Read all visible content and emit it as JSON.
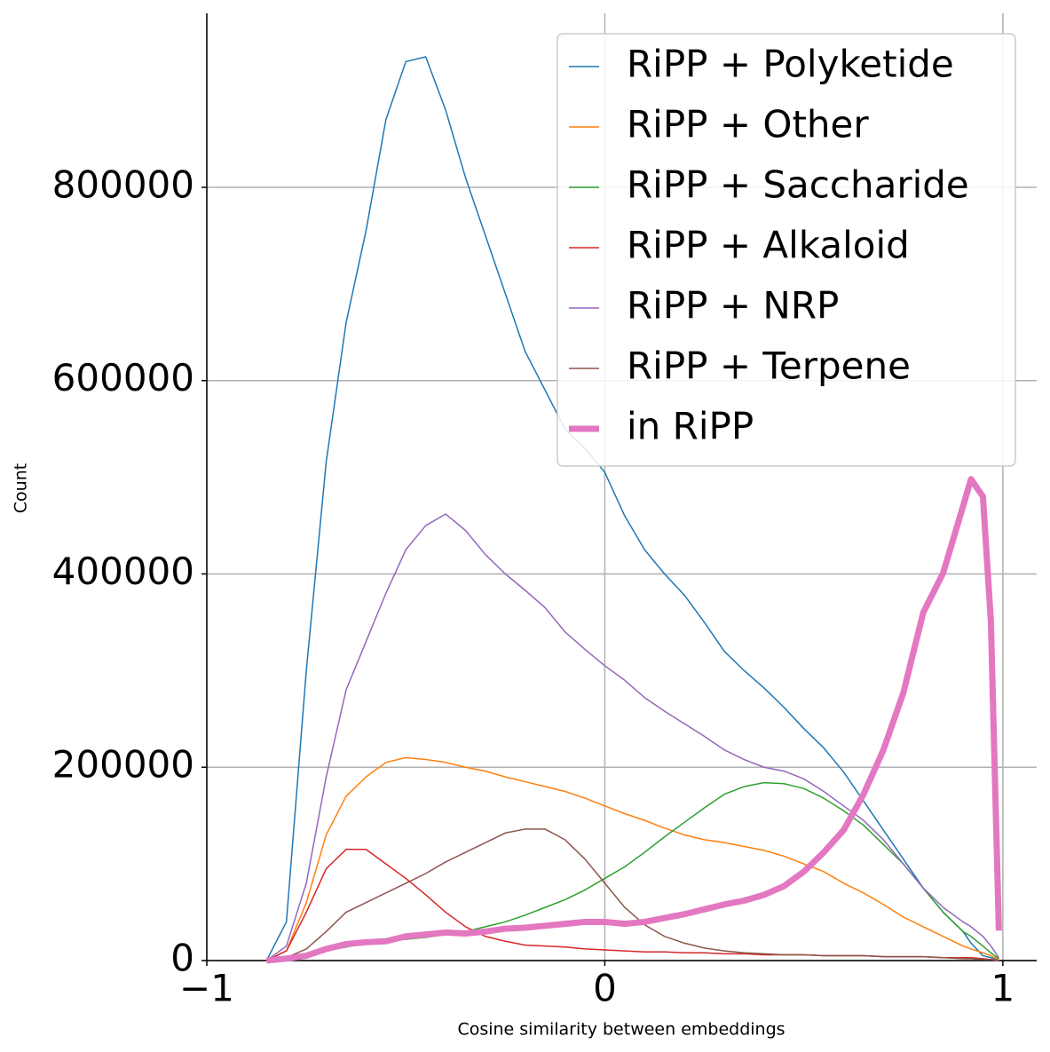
{
  "chart_data": {
    "type": "line",
    "x_label": "Cosine similarity between embeddings",
    "y_label": "Count",
    "x": [
      -0.85,
      -0.8,
      -0.75,
      -0.7,
      -0.65,
      -0.6,
      -0.55,
      -0.5,
      -0.45,
      -0.4,
      -0.35,
      -0.3,
      -0.25,
      -0.2,
      -0.15,
      -0.1,
      -0.05,
      0,
      0.05,
      0.1,
      0.15,
      0.2,
      0.25,
      0.3,
      0.35,
      0.4,
      0.45,
      0.5,
      0.55,
      0.6,
      0.65,
      0.7,
      0.75,
      0.8,
      0.85,
      0.9,
      0.92,
      0.95,
      0.97,
      0.99
    ],
    "series": [
      {
        "name": "RiPP + Polyketide",
        "color": "#1f77b4",
        "width": 1.5,
        "values": [
          0,
          40000,
          300000,
          516000,
          660000,
          755000,
          870000,
          930000,
          935000,
          880000,
          810000,
          750000,
          690000,
          630000,
          590000,
          550000,
          530000,
          505000,
          460000,
          425000,
          400000,
          378000,
          350000,
          320000,
          300000,
          282000,
          262000,
          240000,
          220000,
          195000,
          165000,
          135000,
          105000,
          75000,
          50000,
          30000,
          18000,
          5000,
          3000,
          0
        ]
      },
      {
        "name": "RiPP + Other",
        "color": "#ff7f0e",
        "width": 1.5,
        "values": [
          0,
          10000,
          60000,
          130000,
          170000,
          190000,
          205000,
          210000,
          208000,
          205000,
          200000,
          196000,
          190000,
          185000,
          180000,
          175000,
          168000,
          160000,
          152000,
          145000,
          137000,
          130000,
          125000,
          122000,
          118000,
          114000,
          108000,
          100000,
          92000,
          80000,
          70000,
          58000,
          45000,
          35000,
          25000,
          15000,
          12000,
          8000,
          5000,
          1000
        ]
      },
      {
        "name": "RiPP + Saccharide",
        "color": "#2ca02c",
        "width": 1.5,
        "values": [
          0,
          2000,
          5000,
          10000,
          14000,
          18000,
          20000,
          22000,
          24000,
          27000,
          30000,
          35000,
          40000,
          47000,
          55000,
          63000,
          73000,
          85000,
          97000,
          112000,
          128000,
          143000,
          158000,
          172000,
          180000,
          184000,
          183000,
          178000,
          168000,
          155000,
          140000,
          120000,
          100000,
          75000,
          50000,
          30000,
          25000,
          15000,
          8000,
          2000
        ]
      },
      {
        "name": "RiPP + Alkaloid",
        "color": "#d62728",
        "width": 1.5,
        "values": [
          0,
          10000,
          50000,
          95000,
          115000,
          115000,
          100000,
          85000,
          68000,
          50000,
          35000,
          25000,
          20000,
          16000,
          15000,
          14000,
          12000,
          11000,
          10000,
          9000,
          9000,
          8000,
          8000,
          7000,
          7000,
          6000,
          6000,
          6000,
          5000,
          5000,
          5000,
          4000,
          4000,
          4000,
          3000,
          3000,
          3000,
          2000,
          1000,
          0
        ]
      },
      {
        "name": "RiPP + NRP",
        "color": "#9467bd",
        "width": 1.5,
        "values": [
          0,
          15000,
          80000,
          190000,
          280000,
          330000,
          380000,
          425000,
          450000,
          462000,
          445000,
          420000,
          400000,
          383000,
          365000,
          340000,
          322000,
          305000,
          290000,
          272000,
          258000,
          245000,
          232000,
          218000,
          208000,
          200000,
          196000,
          188000,
          175000,
          160000,
          145000,
          125000,
          100000,
          75000,
          55000,
          40000,
          35000,
          25000,
          15000,
          3000
        ]
      },
      {
        "name": "RiPP + Terpene",
        "color": "#8c564b",
        "width": 1.5,
        "values": [
          0,
          3000,
          12000,
          30000,
          50000,
          60000,
          70000,
          80000,
          90000,
          102000,
          112000,
          122000,
          132000,
          136000,
          136000,
          125000,
          105000,
          80000,
          55000,
          37000,
          25000,
          18000,
          13000,
          10000,
          8000,
          7000,
          6000,
          6000,
          5000,
          5000,
          5000,
          4000,
          4000,
          4000,
          3000,
          2000,
          2000,
          1000,
          1000,
          0
        ]
      },
      {
        "name": "in RiPP",
        "color": "#e377c2",
        "width": 7,
        "values": [
          0,
          2000,
          5000,
          12000,
          17000,
          19000,
          20000,
          25000,
          27000,
          29000,
          28000,
          30000,
          33000,
          34000,
          36000,
          38000,
          40000,
          40000,
          38000,
          40000,
          44000,
          48000,
          53000,
          58000,
          62000,
          68000,
          77000,
          92000,
          112000,
          135000,
          172000,
          218000,
          277000,
          360000,
          401000,
          470000,
          498000,
          480000,
          350000,
          31000
        ]
      }
    ],
    "xlim": [
      -1,
      1.085
    ],
    "ylim": [
      0,
      980000
    ],
    "xticks": [
      {
        "value": -1,
        "label": "−1"
      },
      0,
      1
    ],
    "yticks": [
      0,
      200000,
      400000,
      600000,
      800000
    ],
    "grid": true,
    "legend": "upper right"
  }
}
